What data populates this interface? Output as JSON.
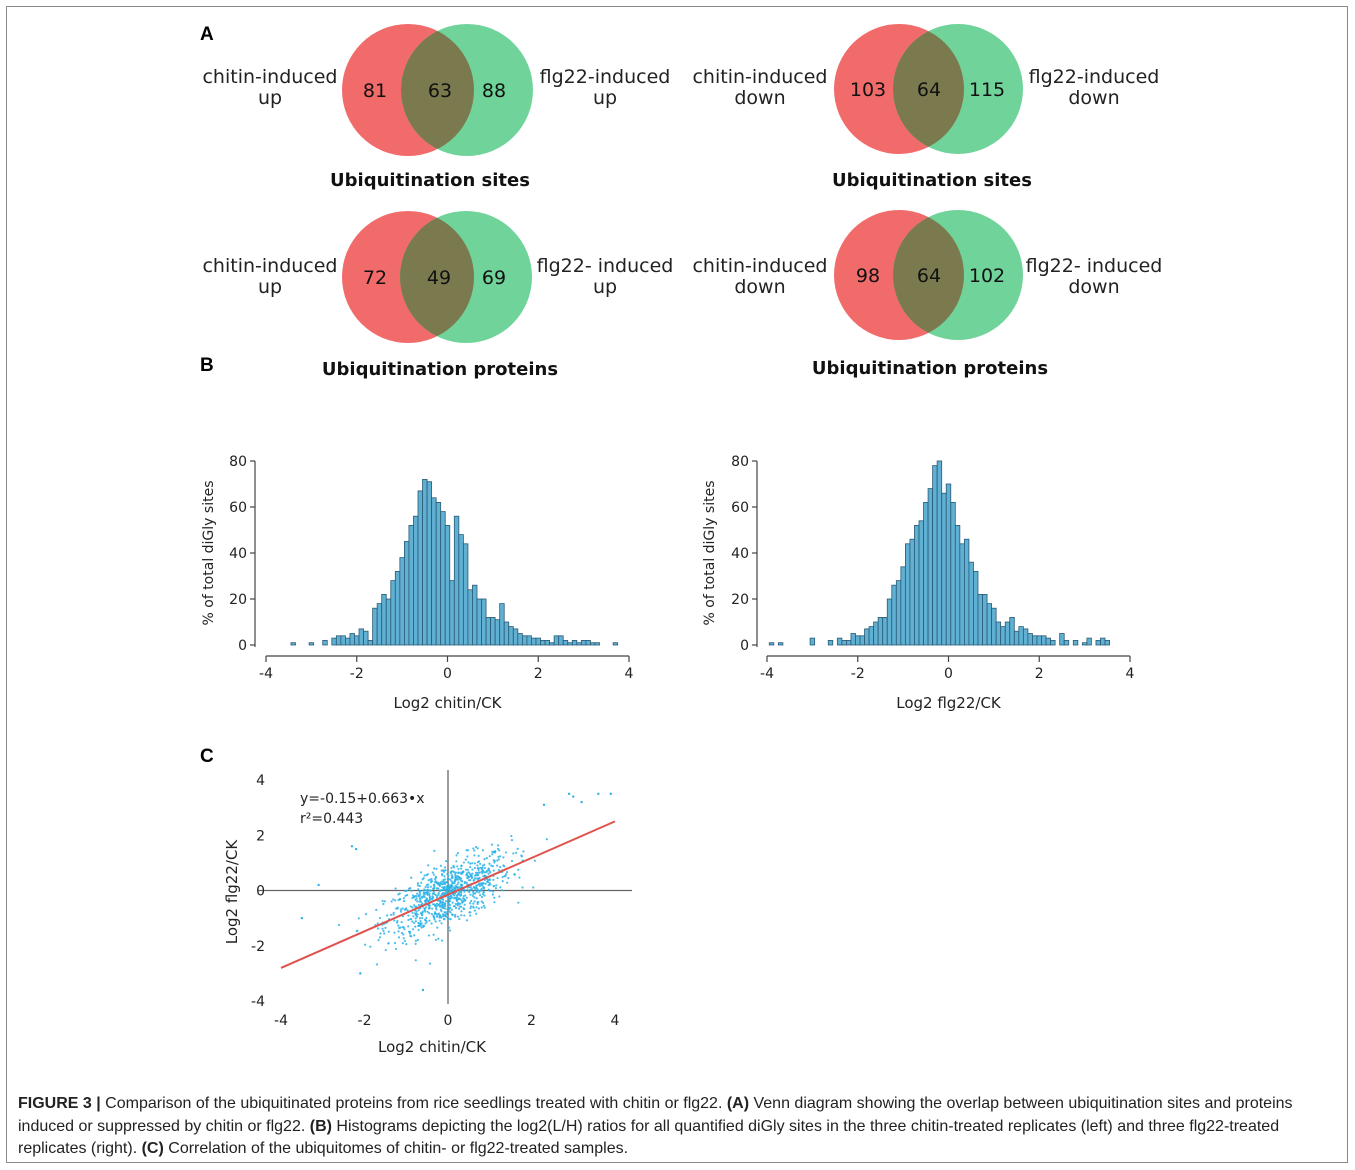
{
  "panels": {
    "a": "A",
    "b": "B",
    "c": "C"
  },
  "venns": [
    {
      "id": "sites-up",
      "left_label": [
        "chitin-induced",
        "up"
      ],
      "right_label": [
        "flg22-induced",
        "up"
      ],
      "left_only": "81",
      "overlap": "63",
      "right_only": "88",
      "title": "Ubiquitination  sites"
    },
    {
      "id": "sites-down",
      "left_label": [
        "chitin-induced",
        "down"
      ],
      "right_label": [
        "flg22-induced",
        "down"
      ],
      "left_only": "103",
      "overlap": "64",
      "right_only": "115",
      "title": "Ubiquitination  sites"
    },
    {
      "id": "proteins-up",
      "left_label": [
        "chitin-induced",
        "up"
      ],
      "right_label": [
        "flg22- induced",
        "up"
      ],
      "left_only": "72",
      "overlap": "49",
      "right_only": "69",
      "title": "Ubiquitination  proteins"
    },
    {
      "id": "proteins-down",
      "left_label": [
        "chitin-induced",
        "down"
      ],
      "right_label": [
        "flg22- induced",
        "down"
      ],
      "left_only": "98",
      "overlap": "64",
      "right_only": "102",
      "title": "Ubiquitination  proteins"
    }
  ],
  "colors": {
    "venn_left": "#f26b6b",
    "venn_right": "#6fd39a",
    "venn_overlap": "#7a7a4e",
    "bar_fill": "#5fb0d3",
    "bar_stroke": "#2a5b75",
    "scatter": "#2bb3e8",
    "fit_line": "#e0534d"
  },
  "chart_data": [
    {
      "type": "bar",
      "panel": "B-left",
      "xlabel": "Log2 chitin/CK",
      "ylabel": "% of total diGly sites",
      "xlim": [
        -4,
        4
      ],
      "ylim": [
        0,
        80
      ],
      "xticks": [
        -4,
        -2,
        0,
        2,
        4
      ],
      "yticks": [
        0,
        20,
        40,
        60,
        80
      ],
      "bin_width": 0.1,
      "x": [
        -3.4,
        -3.0,
        -2.7,
        -2.5,
        -2.4,
        -2.3,
        -2.2,
        -2.1,
        -2.0,
        -1.9,
        -1.8,
        -1.7,
        -1.6,
        -1.5,
        -1.4,
        -1.3,
        -1.2,
        -1.1,
        -1.0,
        -0.9,
        -0.8,
        -0.7,
        -0.6,
        -0.5,
        -0.4,
        -0.3,
        -0.2,
        -0.1,
        0.0,
        0.1,
        0.2,
        0.3,
        0.4,
        0.5,
        0.6,
        0.7,
        0.8,
        0.9,
        1.0,
        1.1,
        1.2,
        1.3,
        1.4,
        1.5,
        1.6,
        1.7,
        1.8,
        1.9,
        2.0,
        2.1,
        2.2,
        2.3,
        2.4,
        2.5,
        2.6,
        2.7,
        2.8,
        2.9,
        3.0,
        3.1,
        3.2,
        3.3,
        3.4,
        3.7
      ],
      "values": [
        1,
        1,
        2,
        3,
        4,
        4,
        3,
        5,
        4,
        7,
        6,
        2,
        16,
        18,
        22,
        20,
        28,
        32,
        38,
        45,
        52,
        56,
        67,
        72,
        71,
        64,
        62,
        58,
        52,
        28,
        56,
        48,
        44,
        24,
        26,
        20,
        20,
        12,
        12,
        11,
        18,
        10,
        8,
        7,
        5,
        4,
        4,
        3,
        3,
        2,
        2,
        1,
        4,
        4,
        2,
        1,
        2,
        1,
        2,
        2,
        1,
        1,
        0,
        1
      ]
    },
    {
      "type": "bar",
      "panel": "B-right",
      "xlabel": "Log2 flg22/CK",
      "ylabel": "% of total diGly sites",
      "xlim": [
        -4,
        4
      ],
      "ylim": [
        0,
        80
      ],
      "xticks": [
        -4,
        -2,
        0,
        2,
        4
      ],
      "yticks": [
        0,
        20,
        40,
        60,
        80
      ],
      "bin_width": 0.1,
      "x": [
        -3.9,
        -3.7,
        -3.0,
        -2.6,
        -2.4,
        -2.3,
        -2.2,
        -2.1,
        -2.0,
        -1.9,
        -1.8,
        -1.7,
        -1.6,
        -1.5,
        -1.4,
        -1.3,
        -1.2,
        -1.1,
        -1.0,
        -0.9,
        -0.8,
        -0.7,
        -0.6,
        -0.5,
        -0.4,
        -0.3,
        -0.2,
        -0.1,
        0.0,
        0.1,
        0.2,
        0.3,
        0.4,
        0.5,
        0.6,
        0.7,
        0.8,
        0.9,
        1.0,
        1.1,
        1.2,
        1.3,
        1.4,
        1.5,
        1.6,
        1.7,
        1.8,
        1.9,
        2.0,
        2.1,
        2.2,
        2.3,
        2.5,
        2.6,
        2.8,
        3.0,
        3.1,
        3.3,
        3.4,
        3.5
      ],
      "values": [
        1,
        1,
        3,
        2,
        3,
        2,
        2,
        5,
        4,
        4,
        7,
        8,
        10,
        12,
        12,
        20,
        26,
        28,
        34,
        44,
        46,
        52,
        54,
        62,
        68,
        78,
        80,
        66,
        70,
        62,
        52,
        44,
        46,
        36,
        32,
        22,
        22,
        18,
        16,
        10,
        8,
        10,
        12,
        6,
        8,
        7,
        5,
        4,
        4,
        4,
        3,
        2,
        5,
        2,
        2,
        1,
        3,
        2,
        3,
        2
      ]
    },
    {
      "type": "scatter",
      "panel": "C",
      "xlabel": "Log2 chitin/CK",
      "ylabel": "Log2 flg22/CK",
      "xlim": [
        -4,
        4
      ],
      "ylim": [
        -4,
        4
      ],
      "xticks": [
        -4,
        -2,
        0,
        2,
        4
      ],
      "yticks": [
        -4,
        -2,
        0,
        2,
        4
      ],
      "fit": {
        "intercept": -0.15,
        "slope": 0.663,
        "x_range": [
          -4,
          4
        ]
      },
      "annotation": [
        "y=-0.15+0.663•x",
        "r²=0.443"
      ],
      "point_distribution": {
        "count": 900,
        "center": [
          0,
          -0.15
        ],
        "sd_x": 0.75,
        "slope": 0.663,
        "residual_sd": 0.55
      },
      "outliers": [
        [
          -2.3,
          1.6
        ],
        [
          -2.2,
          1.5
        ],
        [
          -3.5,
          -1.0
        ],
        [
          -2.1,
          -3.0
        ],
        [
          -0.6,
          -3.6
        ],
        [
          -3.1,
          0.2
        ],
        [
          2.9,
          3.5
        ],
        [
          3.9,
          3.5
        ],
        [
          3.6,
          3.5
        ],
        [
          3.0,
          3.4
        ],
        [
          2.3,
          3.1
        ],
        [
          3.2,
          3.2
        ]
      ]
    }
  ],
  "caption": {
    "label": "FIGURE 3 |",
    "text_1": " Comparison of the ubiquitinated proteins from rice seedlings treated with chitin or flg22. ",
    "a": "(A)",
    "text_2": " Venn diagram showing the overlap between ubiquitination sites and proteins induced or suppressed by chitin or flg22. ",
    "b": "(B)",
    "text_3": " Histograms depicting the log2(L/H) ratios for all quantified diGly sites in the three chitin-treated replicates (left) and three flg22-treated replicates (right). ",
    "c": "(C)",
    "text_4": " Correlation of the ubiquitomes of chitin- or flg22-treated samples."
  }
}
